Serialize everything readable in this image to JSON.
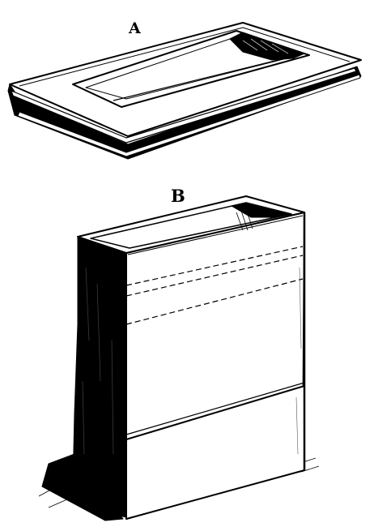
{
  "labels": {
    "a": "A",
    "b": "B"
  },
  "colors": {
    "ink": "#000000",
    "paper": "#ffffff",
    "mid": "#2a2a2a"
  }
}
